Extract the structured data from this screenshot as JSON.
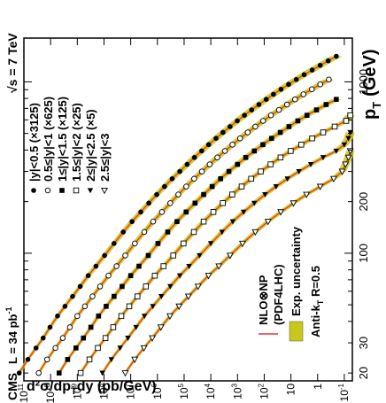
{
  "chart_data": {
    "type": "scatter",
    "experiment_label": "CMS",
    "luminosity_label": "L = 34 pb",
    "luminosity_sup": "-1",
    "energy_label": "√s = 7 TeV",
    "xlabel": "p",
    "xlabel_sub": "T",
    "xlabel_unit": "(GeV)",
    "ylabel": "d²σ/dp",
    "ylabel_sub": "T",
    "ylabel_rest": "dy (pb/GeV)",
    "x_scale": "log",
    "y_scale": "log",
    "xlim": [
      18,
      1800
    ],
    "ylim": [
      0.05,
      100000000000.0
    ],
    "x_ticks": [
      "20",
      "30",
      "100",
      "200",
      "1000"
    ],
    "y_ticks": [
      {
        "mant": "10",
        "exp": "11"
      },
      {
        "mant": "10",
        "exp": "10"
      },
      {
        "mant": "10",
        "exp": "9"
      },
      {
        "mant": "10",
        "exp": "8"
      },
      {
        "mant": "10",
        "exp": "7"
      },
      {
        "mant": "10",
        "exp": "6"
      },
      {
        "mant": "10",
        "exp": "5"
      },
      {
        "mant": "10",
        "exp": "4"
      },
      {
        "mant": "10",
        "exp": "3"
      },
      {
        "mant": "10",
        "exp": "2"
      },
      {
        "mant": "10",
        "exp": ""
      },
      {
        "mant": "1",
        "exp": ""
      },
      {
        "mant": "10",
        "exp": "-1"
      }
    ],
    "y_tick_values": [
      100000000000.0,
      10000000000.0,
      1000000000.0,
      100000000.0,
      10000000.0,
      1000000.0,
      100000.0,
      10000.0,
      1000.0,
      100.0,
      10,
      1,
      0.1
    ],
    "legend_series": [
      {
        "label": "|y|<0.5 (×3125)",
        "marker": "filled-circle"
      },
      {
        "label": "0.5≤|y|<1 (×625)",
        "marker": "open-circle"
      },
      {
        "label": "1≤|y|<1.5 (×125)",
        "marker": "filled-square"
      },
      {
        "label": "1.5≤|y|<2 (×25)",
        "marker": "open-square"
      },
      {
        "label": "2≤|y|<2.5 (×5)",
        "marker": "filled-triangle"
      },
      {
        "label": "2.5≤|y|<3",
        "marker": "open-triangle"
      }
    ],
    "legend_theory": {
      "line1": "NLO⊗NP",
      "line2": "(PDF4LHC)"
    },
    "legend_band": "Exp. uncertainty",
    "legend_algo": {
      "pre": "Anti-k",
      "sub": "T",
      "post": " R=0.5"
    },
    "colors": {
      "theory": "#e8303a",
      "band": "#c8c81a",
      "marker": "#000000"
    },
    "series": [
      {
        "name": "|y|<0.5 (×3125)",
        "marker": "filled-circle",
        "x": [
          20,
          24,
          28,
          32,
          37,
          43,
          49,
          56,
          64,
          74,
          84,
          97,
          114,
          133,
          153,
          174,
          196,
          220,
          245,
          272,
          300,
          330,
          362,
          395,
          430,
          468,
          507,
          548,
          592,
          638,
          686,
          737,
          790,
          846,
          905,
          967,
          1032,
          1101,
          1172,
          1248,
          1327,
          1410
        ],
        "y": [
          150000000000.0,
          71000000000.0,
          35000000000.0,
          19000000000.0,
          10500000000.0,
          5500000000.0,
          2900000000.0,
          1500000000.0,
          780000000.0,
          390000000.0,
          200000000.0,
          95000000.0,
          42000000.0,
          19000000.0,
          8900000.0,
          4200000.0,
          2100000.0,
          1060000.0,
          540000.0,
          280000.0,
          145000.0,
          77000.0,
          41000.0,
          22000.0,
          12000.0,
          6400.0,
          3500.0,
          1900.0,
          1020.0,
          550,
          295,
          158,
          84,
          45,
          23.5,
          12.2,
          6.3,
          3.2,
          1.6,
          0.8,
          0.4,
          0.2
        ]
      },
      {
        "name": "0.5≤|y|<1 (×625)",
        "marker": "open-circle",
        "x": [
          20,
          24,
          28,
          32,
          37,
          43,
          49,
          56,
          64,
          74,
          84,
          97,
          114,
          133,
          153,
          174,
          196,
          220,
          245,
          272,
          300,
          330,
          362,
          395,
          430,
          468,
          507,
          548,
          592,
          638,
          686,
          737,
          790,
          846,
          905,
          967,
          1032
        ],
        "y": [
          28000000000.0,
          13500000000.0,
          6600000000.0,
          3500000000.0,
          1900000000.0,
          1000000000.0,
          520000000.0,
          270000000.0,
          140000000.0,
          68000000.0,
          34000000.0,
          16000000.0,
          7000000.0,
          3100000.0,
          1450000.0,
          680000.0,
          330000.0,
          165000.0,
          83000.0,
          42000.0,
          21500.0,
          11000.0,
          5700.0,
          2950.0,
          1550.0,
          800,
          415,
          215,
          110,
          56,
          28,
          14,
          7,
          3.4,
          1.65,
          0.8,
          0.38
        ]
      },
      {
        "name": "1≤|y|<1.5 (×125)",
        "marker": "filled-square",
        "x": [
          20,
          24,
          28,
          32,
          37,
          43,
          49,
          56,
          64,
          74,
          84,
          97,
          114,
          133,
          153,
          174,
          196,
          220,
          245,
          272,
          300,
          330,
          362,
          395,
          430,
          468,
          507,
          548,
          592,
          638,
          686,
          737,
          790
        ],
        "y": [
          4800000000.0,
          2300000000.0,
          1120000000.0,
          590000000.0,
          310000000.0,
          160000000.0,
          83000000.0,
          42000000.0,
          21000000.0,
          10000000.0,
          4900000.0,
          2200000.0,
          950000.0,
          410000.0,
          185000.0,
          84000.0,
          39000.0,
          18500.0,
          8900.0,
          4300.0,
          2100.0,
          1000.0,
          490,
          235,
          112,
          53,
          25,
          11.8,
          5.5,
          2.5,
          1.1,
          0.48,
          0.2
        ]
      },
      {
        "name": "1.5≤|y|<2 (×25)",
        "marker": "open-square",
        "x": [
          20,
          24,
          28,
          32,
          37,
          43,
          49,
          56,
          64,
          74,
          84,
          97,
          114,
          133,
          153,
          174,
          196,
          220,
          245,
          272,
          300,
          330,
          362,
          395,
          430,
          468,
          507,
          548,
          592,
          638
        ],
        "y": [
          750000000.0,
          350000000.0,
          170000000.0,
          88000000.0,
          45000000.0,
          22500000.0,
          11300000.0,
          5600000.0,
          2700000.0,
          1250000.0,
          590000.0,
          255000.0,
          105000.0,
          43000.0,
          18500.0,
          8000.0,
          3550.0,
          1580.0,
          700,
          308,
          135,
          58,
          24.5,
          10.2,
          4.1,
          1.6,
          0.62,
          0.23,
          0.085,
          0.06
        ]
      },
      {
        "name": "2≤|y|<2.5 (×5)",
        "marker": "filled-triangle",
        "x": [
          20,
          24,
          28,
          32,
          37,
          43,
          49,
          56,
          64,
          74,
          84,
          97,
          114,
          133,
          153,
          174,
          196,
          220,
          245,
          272,
          300,
          330,
          362,
          395,
          430,
          468,
          507
        ],
        "y": [
          115000000.0,
          53000000.0,
          25000000.0,
          12700000.0,
          6300000.0,
          3050000.0,
          1480000.0,
          710000.0,
          330000.0,
          145000.0,
          65000.0,
          26500.0,
          10000.0,
          3800.0,
          1500.0,
          590,
          235,
          93,
          36,
          13.5,
          5.0,
          1.8,
          0.62,
          0.2,
          0.1,
          0.07,
          0.06
        ]
      },
      {
        "name": "2.5≤|y|<3",
        "marker": "open-triangle",
        "x": [
          20,
          24,
          28,
          32,
          37,
          43,
          49,
          56,
          64,
          74,
          84,
          97,
          114,
          133,
          153,
          174,
          196,
          220,
          245,
          272,
          300,
          330,
          362,
          395
        ],
        "y": [
          16000000.0,
          7100000.0,
          3200000.0,
          1550000.0,
          740000.0,
          340000.0,
          155000.0,
          69000.0,
          30000.0,
          12200.0,
          5000.0,
          1900.0,
          650,
          215,
          72,
          24,
          8,
          2.6,
          0.8,
          0.25,
          0.12,
          0.09,
          0.07,
          0.06
        ]
      }
    ]
  }
}
